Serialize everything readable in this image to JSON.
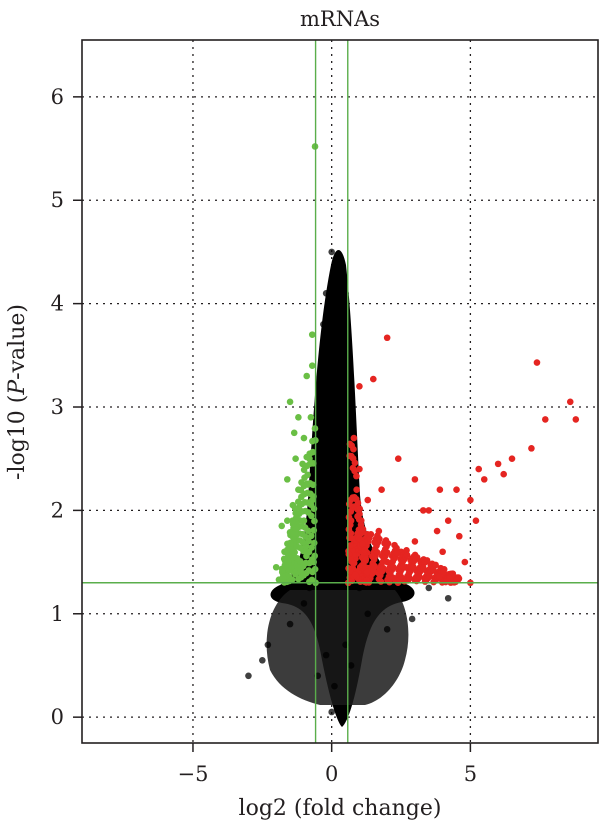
{
  "chart_data": {
    "type": "scatter",
    "title": "mRNAs",
    "xlabel": "log2 (fold change)",
    "ylabel_prefix": "-log10 (",
    "ylabel_italic": "P",
    "ylabel_suffix": "-value)",
    "xlim": [
      -9.0,
      9.6
    ],
    "ylim": [
      -0.25,
      6.55
    ],
    "x_ticks": [
      -5,
      0,
      5
    ],
    "x_tick_labels": [
      "−5",
      "0",
      "5"
    ],
    "y_ticks": [
      0,
      1,
      2,
      3,
      4,
      5,
      6
    ],
    "y_tick_labels": [
      "0",
      "1",
      "2",
      "3",
      "4",
      "5",
      "6"
    ],
    "grid": true,
    "thresholds": {
      "log2fc": [
        -0.58,
        0.58
      ],
      "neg_log10_p": 1.3
    },
    "colors": {
      "up": "#e52521",
      "down": "#6abf45",
      "not_significant": "#000000",
      "threshold_lines": "#5aae4b",
      "axis": "#231f20",
      "grid": "#231f20"
    },
    "series": [
      {
        "category": "down",
        "points": [
          [
            -0.6,
            5.52
          ],
          [
            -1.5,
            3.05
          ],
          [
            -1.2,
            2.9
          ],
          [
            -0.9,
            3.3
          ],
          [
            -0.7,
            3.7
          ],
          [
            -1.0,
            2.7
          ],
          [
            -1.3,
            2.5
          ],
          [
            -1.6,
            2.3
          ],
          [
            -1.4,
            2.05
          ],
          [
            -1.8,
            1.85
          ],
          [
            -1.7,
            1.6
          ],
          [
            -2.0,
            1.45
          ],
          [
            -1.9,
            1.33
          ],
          [
            -1.2,
            2.2
          ],
          [
            -0.8,
            2.5
          ],
          [
            -0.7,
            2.1
          ],
          [
            -1.0,
            1.9
          ],
          [
            -0.9,
            1.6
          ],
          [
            -1.1,
            1.4
          ],
          [
            -0.65,
            1.5
          ],
          [
            -0.75,
            2.9
          ],
          [
            -1.3,
            1.75
          ],
          [
            -1.5,
            1.55
          ],
          [
            -0.85,
            2.25
          ],
          [
            -1.05,
            2.45
          ],
          [
            -0.7,
            3.4
          ],
          [
            -1.25,
            1.45
          ],
          [
            -1.6,
            1.9
          ],
          [
            -1.35,
            2.75
          ]
        ]
      },
      {
        "category": "up",
        "points": [
          [
            7.4,
            3.43
          ],
          [
            8.6,
            3.05
          ],
          [
            8.8,
            2.88
          ],
          [
            7.7,
            2.88
          ],
          [
            7.2,
            2.6
          ],
          [
            6.5,
            2.5
          ],
          [
            6.2,
            2.35
          ],
          [
            5.5,
            2.3
          ],
          [
            5.3,
            2.4
          ],
          [
            5.0,
            2.1
          ],
          [
            4.5,
            2.2
          ],
          [
            4.2,
            1.9
          ],
          [
            3.8,
            1.8
          ],
          [
            3.5,
            2.0
          ],
          [
            3.0,
            1.7
          ],
          [
            2.5,
            1.6
          ],
          [
            2.0,
            1.5
          ],
          [
            1.5,
            1.4
          ],
          [
            1.0,
            1.35
          ],
          [
            2.0,
            3.67
          ],
          [
            1.5,
            3.27
          ],
          [
            1.0,
            3.2
          ],
          [
            0.8,
            2.7
          ],
          [
            1.0,
            2.4
          ],
          [
            1.3,
            2.1
          ],
          [
            2.4,
            2.5
          ],
          [
            3.3,
            2.0
          ],
          [
            1.7,
            1.8
          ],
          [
            2.7,
            1.45
          ],
          [
            3.5,
            1.38
          ],
          [
            4.3,
            1.35
          ],
          [
            4.8,
            1.5
          ],
          [
            5.0,
            1.3
          ],
          [
            3.0,
            2.3
          ],
          [
            0.7,
            1.9
          ],
          [
            1.2,
            1.7
          ],
          [
            2.2,
            1.35
          ],
          [
            4.0,
            1.6
          ],
          [
            5.2,
            1.9
          ],
          [
            0.9,
            2.2
          ],
          [
            1.8,
            2.2
          ],
          [
            3.9,
            2.2
          ],
          [
            6.0,
            2.45
          ],
          [
            4.6,
            1.75
          ]
        ]
      },
      {
        "category": "not_significant",
        "points": [
          [
            0.0,
            4.5
          ],
          [
            -0.2,
            4.1
          ],
          [
            0.5,
            4.1
          ],
          [
            0.3,
            3.9
          ],
          [
            -0.3,
            3.8
          ],
          [
            0.4,
            3.6
          ],
          [
            0.2,
            3.2
          ],
          [
            0.0,
            0.05
          ],
          [
            0.1,
            0.3
          ],
          [
            -0.2,
            0.6
          ],
          [
            0.5,
            0.7
          ],
          [
            -1.0,
            1.1
          ],
          [
            1.3,
            1.0
          ],
          [
            -2.3,
            0.7
          ],
          [
            -2.5,
            0.55
          ],
          [
            -3.0,
            0.4
          ],
          [
            2.9,
            0.95
          ],
          [
            3.5,
            1.25
          ],
          [
            4.2,
            1.15
          ],
          [
            -1.5,
            0.9
          ],
          [
            2.0,
            0.85
          ],
          [
            -0.5,
            0.4
          ],
          [
            0.7,
            0.5
          ],
          [
            -0.8,
            1.25
          ],
          [
            1.0,
            1.25
          ],
          [
            0.3,
            2.6
          ],
          [
            -0.1,
            2.9
          ],
          [
            0.2,
            1.8
          ]
        ]
      }
    ]
  }
}
